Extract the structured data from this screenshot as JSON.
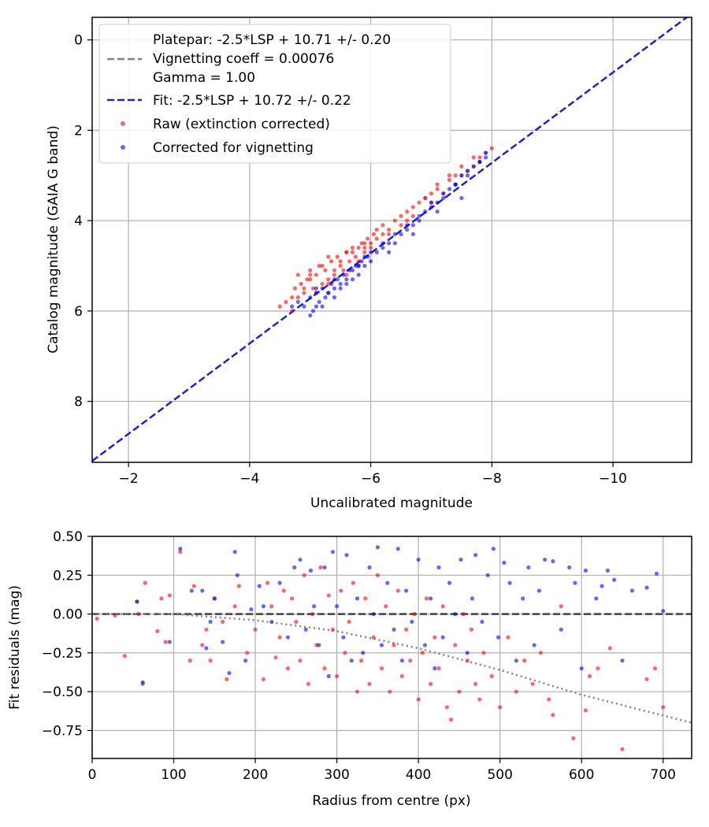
{
  "chart_data": [
    {
      "type": "scatter",
      "xlabel": "Uncalibrated magnitude",
      "ylabel": "Catalog magnitude (GAIA G band)",
      "xlim": [
        -1.4,
        -11.3
      ],
      "ylim": [
        9.35,
        -0.5
      ],
      "x_inverted": true,
      "y_inverted": true,
      "xticks": [
        -2,
        -4,
        -6,
        -8,
        -10
      ],
      "xtick_labels": [
        "−2",
        "−4",
        "−6",
        "−8",
        "−10"
      ],
      "yticks": [
        0,
        2,
        4,
        6,
        8
      ],
      "ytick_labels": [
        "0",
        "2",
        "4",
        "6",
        "8"
      ],
      "grid": true,
      "legend_position": "top-left",
      "legend": {
        "platepar_lines": [
          "Platepar: -2.5*LSP + 10.71 +/- 0.20",
          "Vignetting coeff = 0.00076",
          "Gamma = 1.00"
        ],
        "fit_label": "Fit: -2.5*LSP + 10.72 +/- 0.22",
        "raw_label": "Raw (extinction corrected)",
        "corrected_label": "Corrected for vignetting"
      },
      "lines": [
        {
          "name": "Vignetting coeff = 0.00076",
          "style": "dashed",
          "color": "#808080",
          "x": [],
          "y": []
        },
        {
          "name": "Fit: -2.5*LSP + 10.72 +/- 0.22",
          "style": "dashed",
          "color": "#2020cc",
          "x": [
            -1.4,
            -11.3
          ],
          "y": [
            9.32,
            -0.58
          ]
        }
      ],
      "series": [
        {
          "name": "Raw (extinction corrected)",
          "color": "#ff0000",
          "x": [
            -4.5,
            -4.6,
            -4.7,
            -4.75,
            -4.8,
            -4.85,
            -4.9,
            -4.95,
            -5.0,
            -5.05,
            -5.1,
            -5.15,
            -5.2,
            -5.25,
            -5.3,
            -5.35,
            -5.4,
            -5.45,
            -5.5,
            -5.55,
            -5.6,
            -5.65,
            -5.7,
            -5.75,
            -5.8,
            -5.85,
            -5.9,
            -5.95,
            -6.0,
            -6.05,
            -6.1,
            -6.2,
            -6.3,
            -6.4,
            -6.5,
            -6.6,
            -6.7,
            -6.8,
            -6.9,
            -7.0,
            -7.1,
            -7.2,
            -7.3,
            -7.4,
            -7.5,
            -7.6,
            -7.7,
            -7.8,
            -7.9,
            -8.0,
            -4.8,
            -4.9,
            -5.0,
            -5.1,
            -5.2,
            -5.3,
            -5.4,
            -5.5,
            -5.6,
            -5.7,
            -5.8,
            -5.9,
            -6.0,
            -6.1,
            -6.3,
            -6.5,
            -6.7,
            -6.9,
            -7.1,
            -7.3,
            -7.5,
            -7.7,
            -4.7,
            -5.0,
            -5.3,
            -5.6,
            -5.9,
            -6.2,
            -6.6,
            -7.0,
            -7.4,
            -7.8
          ],
          "y": [
            5.9,
            5.8,
            5.7,
            5.5,
            5.2,
            5.4,
            5.6,
            5.3,
            5.1,
            5.5,
            5.2,
            5.0,
            5.4,
            5.1,
            5.3,
            4.9,
            5.2,
            4.8,
            5.0,
            5.1,
            4.7,
            4.9,
            4.6,
            4.8,
            4.6,
            4.5,
            4.7,
            4.4,
            4.5,
            4.3,
            4.2,
            4.1,
            4.3,
            4.0,
            4.1,
            3.8,
            3.9,
            3.6,
            3.5,
            3.6,
            3.3,
            3.4,
            3.1,
            3.2,
            3.0,
            2.9,
            2.8,
            2.6,
            2.5,
            2.4,
            5.7,
            5.5,
            5.3,
            5.6,
            5.0,
            5.4,
            5.1,
            4.9,
            5.2,
            4.7,
            4.9,
            4.5,
            4.6,
            4.4,
            4.2,
            3.9,
            3.7,
            3.5,
            3.2,
            3.0,
            2.8,
            2.6,
            6.0,
            5.2,
            4.8,
            4.7,
            4.6,
            4.3,
            4.0,
            3.4,
            3.0,
            2.7
          ]
        },
        {
          "name": "Corrected for vignetting",
          "color": "#0000ff",
          "x": [
            -4.7,
            -4.8,
            -4.9,
            -5.0,
            -5.05,
            -5.1,
            -5.15,
            -5.2,
            -5.25,
            -5.3,
            -5.35,
            -5.4,
            -5.45,
            -5.5,
            -5.55,
            -5.6,
            -5.65,
            -5.7,
            -5.75,
            -5.8,
            -5.85,
            -5.9,
            -5.95,
            -6.0,
            -6.1,
            -6.2,
            -6.3,
            -6.4,
            -6.5,
            -6.6,
            -6.7,
            -6.8,
            -6.9,
            -7.0,
            -7.1,
            -7.2,
            -7.3,
            -7.4,
            -7.5,
            -7.6,
            -7.7,
            -7.8,
            -7.9,
            -5.0,
            -5.1,
            -5.2,
            -5.3,
            -5.4,
            -5.5,
            -5.6,
            -5.7,
            -5.8,
            -5.9,
            -6.0,
            -6.2,
            -6.4,
            -6.6,
            -6.8,
            -7.0,
            -7.2,
            -7.4,
            -7.6,
            -7.8,
            -5.1,
            -5.4,
            -5.8,
            -6.3,
            -6.7,
            -7.1,
            -7.5,
            -7.9
          ],
          "y": [
            5.9,
            5.8,
            5.9,
            5.7,
            6.0,
            5.6,
            5.8,
            5.5,
            5.7,
            5.6,
            5.4,
            5.7,
            5.3,
            5.5,
            5.2,
            5.4,
            5.1,
            5.3,
            5.0,
            5.2,
            4.9,
            5.0,
            4.8,
            4.9,
            4.7,
            4.6,
            4.5,
            4.5,
            4.3,
            4.2,
            4.1,
            4.0,
            3.8,
            3.7,
            3.6,
            3.5,
            3.3,
            3.2,
            3.0,
            2.9,
            2.8,
            2.7,
            2.5,
            6.1,
            5.9,
            5.9,
            5.6,
            5.5,
            5.4,
            5.3,
            5.1,
            5.0,
            4.8,
            4.7,
            4.5,
            4.3,
            4.1,
            3.9,
            3.6,
            3.4,
            3.2,
            3.0,
            2.7,
            5.5,
            5.3,
            5.0,
            4.7,
            4.3,
            3.8,
            3.5,
            2.6
          ]
        }
      ]
    },
    {
      "type": "scatter",
      "xlabel": "Radius from centre (px)",
      "ylabel": "Fit residuals (mag)",
      "xlim": [
        0,
        735
      ],
      "ylim": [
        -0.93,
        0.5
      ],
      "xticks": [
        0,
        100,
        200,
        300,
        400,
        500,
        600,
        700
      ],
      "xtick_labels": [
        "0",
        "100",
        "200",
        "300",
        "400",
        "500",
        "600",
        "700"
      ],
      "yticks": [
        0.5,
        0.25,
        0.0,
        -0.25,
        -0.5,
        -0.75
      ],
      "ytick_labels": [
        "0.50",
        "0.25",
        "0.00",
        "−0.25",
        "−0.50",
        "−0.75"
      ],
      "grid": true,
      "lines": [
        {
          "style": "dashed",
          "color": "#404040",
          "x": [
            0,
            735
          ],
          "y": [
            0,
            0
          ]
        },
        {
          "style": "dotted",
          "color": "#808080",
          "x": [
            0,
            100,
            200,
            300,
            400,
            500,
            600,
            735
          ],
          "y": [
            0.0,
            0.0,
            -0.04,
            -0.11,
            -0.22,
            -0.36,
            -0.52,
            -0.7
          ]
        }
      ],
      "series": [
        {
          "name": "Raw",
          "color": "#ff0000",
          "x": [
            6,
            28,
            40,
            55,
            57,
            62,
            65,
            80,
            85,
            90,
            95,
            108,
            120,
            125,
            135,
            140,
            145,
            150,
            160,
            165,
            175,
            180,
            190,
            200,
            210,
            215,
            220,
            225,
            230,
            235,
            240,
            245,
            250,
            255,
            260,
            265,
            270,
            275,
            280,
            285,
            290,
            295,
            300,
            305,
            310,
            315,
            320,
            325,
            330,
            335,
            340,
            345,
            350,
            355,
            360,
            365,
            370,
            375,
            380,
            385,
            390,
            395,
            400,
            405,
            410,
            415,
            420,
            425,
            430,
            435,
            440,
            445,
            450,
            455,
            460,
            465,
            470,
            475,
            480,
            490,
            500,
            510,
            520,
            530,
            540,
            550,
            560,
            565,
            575,
            590,
            605,
            610,
            620,
            635,
            650,
            680,
            690,
            700
          ],
          "y": [
            -0.03,
            -0.01,
            -0.27,
            0.08,
            0.0,
            -0.45,
            0.2,
            -0.11,
            0.1,
            -0.18,
            0.12,
            0.4,
            -0.3,
            0.18,
            -0.2,
            -0.1,
            -0.3,
            0.1,
            -0.05,
            -0.42,
            0.05,
            0.18,
            -0.25,
            -0.1,
            -0.42,
            0.2,
            0.05,
            -0.28,
            -0.15,
            0.15,
            -0.35,
            0.1,
            -0.05,
            -0.3,
            0.25,
            -0.45,
            0.0,
            -0.2,
            0.3,
            -0.35,
            0.12,
            -0.1,
            -0.4,
            0.15,
            -0.25,
            -0.05,
            0.2,
            -0.5,
            -0.3,
            0.1,
            -0.45,
            -0.15,
            0.25,
            -0.35,
            0.05,
            -0.5,
            -0.2,
            0.15,
            -0.4,
            -0.1,
            -0.3,
            0.0,
            -0.55,
            -0.25,
            0.1,
            -0.45,
            -0.15,
            -0.35,
            0.05,
            -0.6,
            -0.68,
            -0.2,
            -0.5,
            0.0,
            -0.3,
            -0.1,
            -0.45,
            -0.55,
            -0.25,
            -0.4,
            -0.6,
            -0.15,
            -0.5,
            -0.3,
            -0.45,
            -0.25,
            -0.55,
            -0.65,
            0.05,
            -0.8,
            -0.62,
            -0.4,
            -0.35,
            -0.22,
            -0.87,
            -0.42,
            -0.35,
            -0.6
          ]
        },
        {
          "name": "Corrected",
          "color": "#0000ff",
          "x": [
            55,
            62,
            95,
            108,
            122,
            135,
            140,
            145,
            150,
            160,
            168,
            175,
            178,
            188,
            195,
            205,
            210,
            220,
            230,
            240,
            248,
            255,
            262,
            268,
            272,
            278,
            285,
            290,
            295,
            300,
            308,
            312,
            318,
            325,
            332,
            340,
            345,
            350,
            355,
            362,
            370,
            375,
            380,
            385,
            392,
            400,
            408,
            415,
            420,
            425,
            430,
            438,
            445,
            452,
            460,
            466,
            470,
            478,
            485,
            492,
            498,
            505,
            512,
            520,
            528,
            535,
            542,
            548,
            555,
            565,
            575,
            585,
            592,
            600,
            605,
            618,
            625,
            632,
            640,
            650,
            662,
            680,
            692,
            700
          ],
          "y": [
            0.08,
            -0.44,
            -0.18,
            0.42,
            0.15,
            0.15,
            -0.22,
            -0.05,
            0.1,
            -0.18,
            -0.38,
            0.4,
            0.25,
            -0.3,
            0.03,
            0.18,
            0.05,
            -0.05,
            0.2,
            -0.15,
            0.3,
            0.35,
            -0.1,
            0.28,
            0.05,
            -0.2,
            0.3,
            -0.4,
            0.4,
            0.05,
            -0.15,
            0.38,
            -0.3,
            0.1,
            -0.25,
            0.3,
            0.0,
            0.43,
            -0.2,
            0.2,
            -0.1,
            0.42,
            -0.3,
            0.15,
            -0.05,
            0.35,
            -0.2,
            0.1,
            -0.35,
            0.3,
            -0.15,
            0.2,
            0.0,
            0.35,
            -0.25,
            0.1,
            0.38,
            -0.05,
            0.25,
            0.42,
            -0.15,
            0.33,
            0.2,
            -0.3,
            0.1,
            0.3,
            -0.2,
            0.15,
            0.35,
            0.34,
            -0.1,
            0.3,
            0.2,
            -0.35,
            0.28,
            0.1,
            0.18,
            0.28,
            0.22,
            -0.3,
            0.15,
            0.17,
            0.26,
            0.02
          ]
        }
      ]
    }
  ]
}
